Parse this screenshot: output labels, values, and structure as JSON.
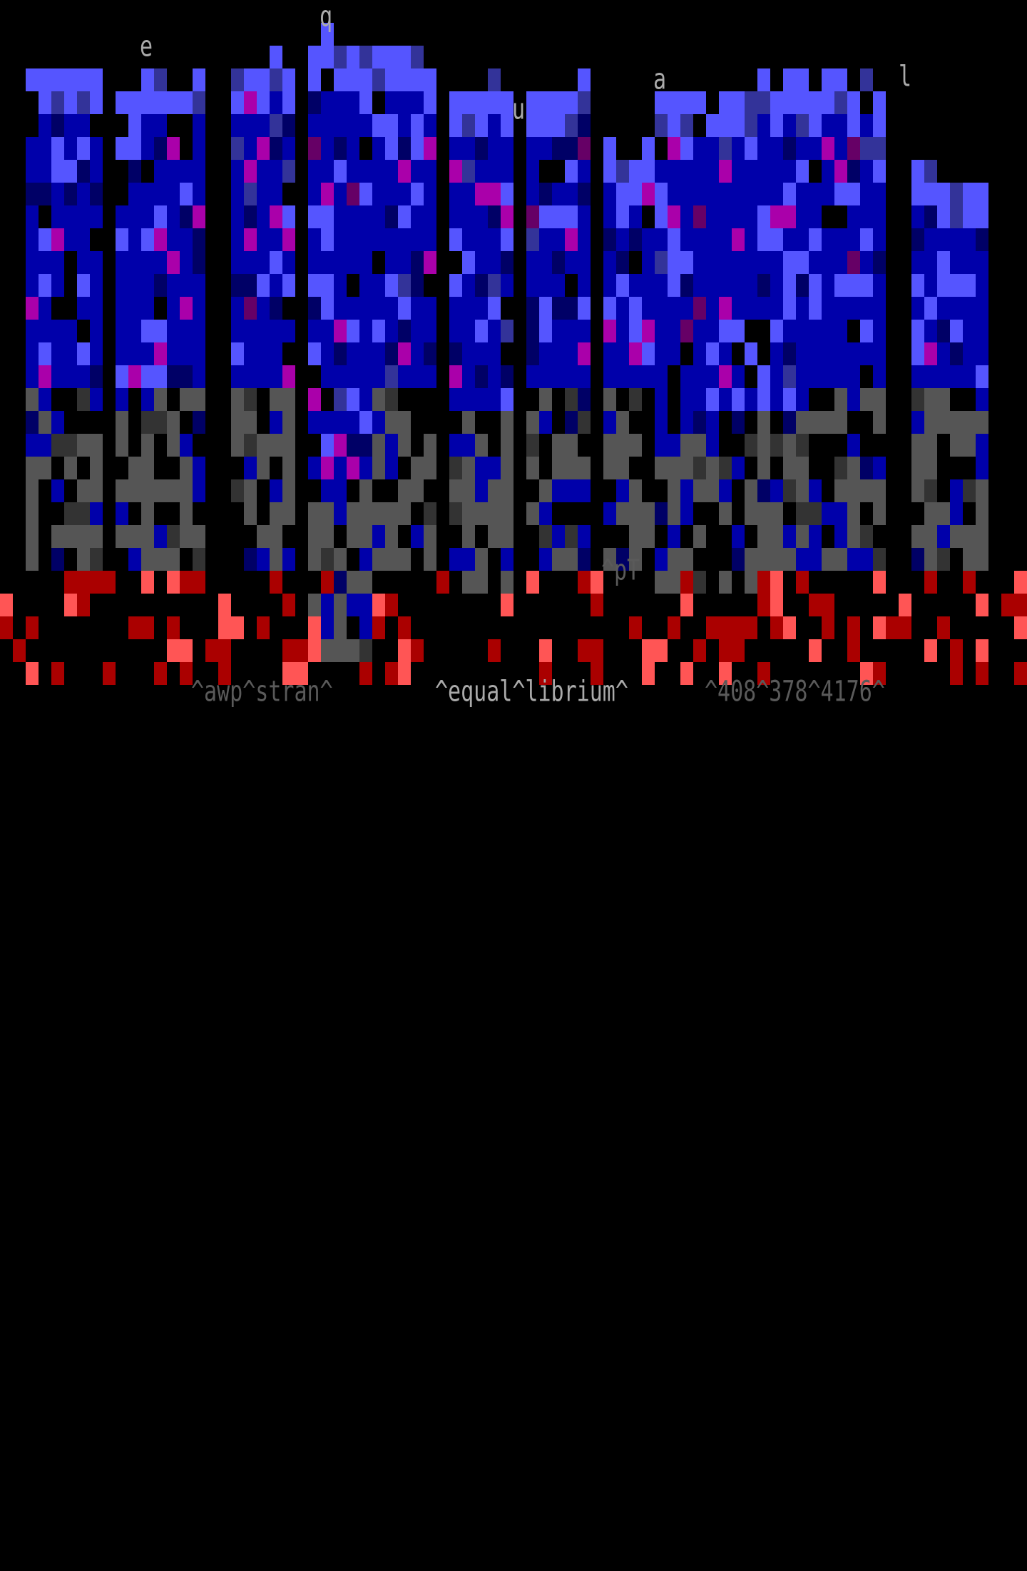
{
  "artwork": {
    "floating_letters": [
      "e",
      "q",
      "u",
      "a",
      "l"
    ],
    "tag": "^pT",
    "credits": {
      "artist": "^awp^stran^",
      "title": "^equal^librium^",
      "numbers": "^408^378^4176^"
    },
    "colors": {
      "background": "#000000",
      "blue_light": "#5555ff",
      "blue_dark": "#0000aa",
      "gray": "#555555",
      "red": "#aa0000",
      "red_light": "#ff5555",
      "magenta": "#aa00aa",
      "text_light": "#aaaaaa"
    }
  }
}
